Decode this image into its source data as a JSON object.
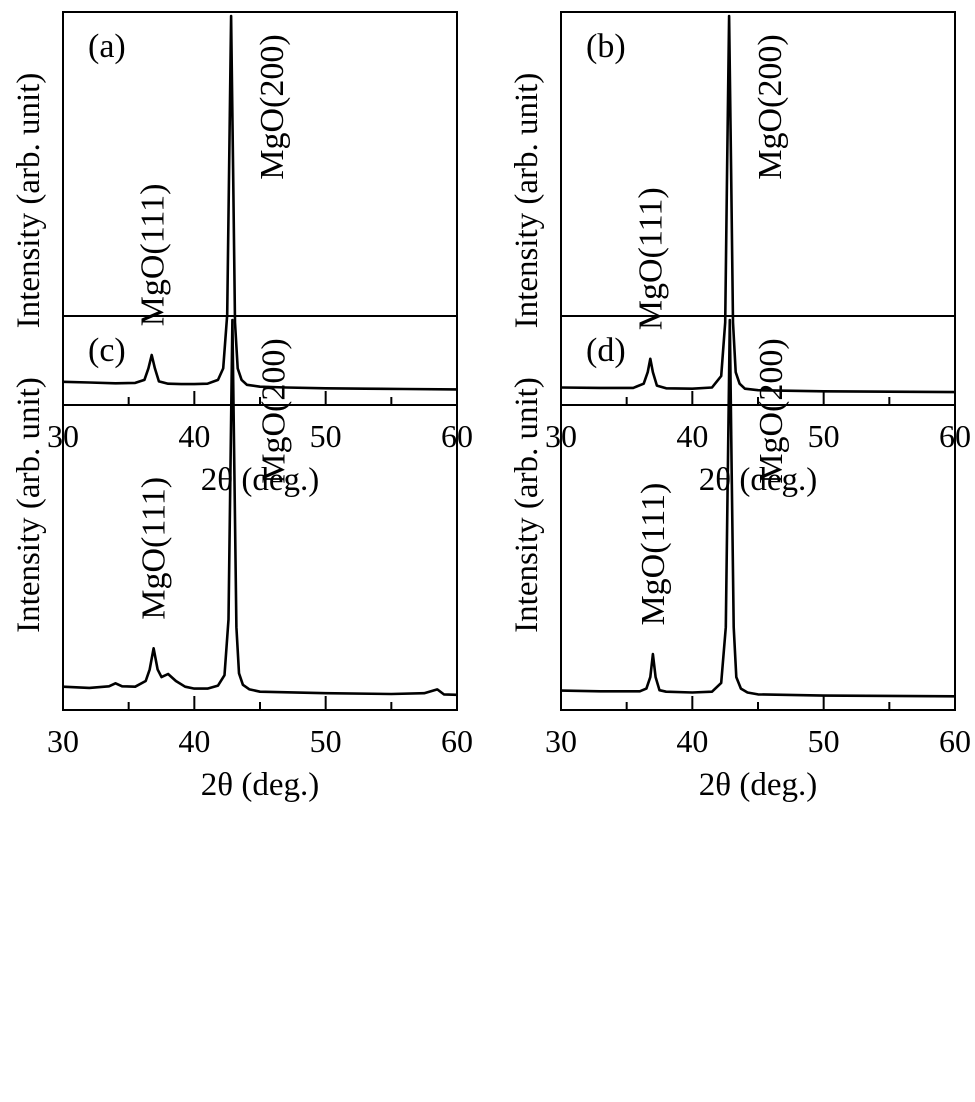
{
  "chart_data": [
    {
      "type": "line",
      "title": "(a)",
      "xlabel": "2θ (deg.)",
      "ylabel": "Intensity (arb. unit)",
      "xlim": [
        30,
        60
      ],
      "ylim": [
        0,
        100
      ],
      "xticks": [
        "30",
        "40",
        "50",
        "60"
      ],
      "minor_x_step": 5,
      "yticks": false,
      "grid": false,
      "baseline": 4.5,
      "x": [
        30,
        32,
        34,
        35.5,
        36.2,
        36.5,
        36.75,
        37.0,
        37.3,
        38,
        39,
        40,
        41,
        41.8,
        42.2,
        42.5,
        42.65,
        42.8,
        42.95,
        43.1,
        43.3,
        43.6,
        44,
        45,
        47,
        50,
        53,
        56,
        60
      ],
      "y": [
        4.5,
        4.3,
        4.1,
        4.2,
        5.0,
        8.0,
        11.5,
        8.0,
        4.6,
        4.0,
        3.9,
        3.9,
        4.0,
        5.0,
        8.0,
        22,
        60,
        100,
        60,
        20,
        8,
        5.0,
        3.7,
        3.2,
        3.0,
        2.8,
        2.7,
        2.6,
        2.5
      ],
      "annotations": [
        {
          "text": "MgO(111)",
          "x": 36.8,
          "y": 11.5
        },
        {
          "text": "MgO(200)",
          "x": 42.8,
          "y": 100
        }
      ]
    },
    {
      "type": "line",
      "title": "(b)",
      "xlabel": "2θ (deg.)",
      "ylabel": "Intensity (arb. unit)",
      "xlim": [
        30,
        60
      ],
      "ylim": [
        0,
        100
      ],
      "xticks": [
        "30",
        "40",
        "50",
        "60"
      ],
      "minor_x_step": 5,
      "yticks": false,
      "grid": false,
      "baseline": 3.0,
      "x": [
        30,
        33,
        35.5,
        36.3,
        36.6,
        36.8,
        37.0,
        37.3,
        38,
        40,
        41.5,
        42.2,
        42.5,
        42.65,
        42.8,
        42.95,
        43.1,
        43.3,
        43.6,
        44,
        45,
        50,
        55,
        60
      ],
      "y": [
        3.0,
        2.9,
        2.9,
        4.0,
        7.0,
        10.5,
        7.0,
        3.5,
        2.8,
        2.7,
        3.0,
        6.0,
        20,
        60,
        100,
        60,
        20,
        7.0,
        4.0,
        2.7,
        2.3,
        2.0,
        1.9,
        1.8
      ],
      "annotations": [
        {
          "text": "MgO(111)",
          "x": 36.8,
          "y": 10.5
        },
        {
          "text": "MgO(200)",
          "x": 42.8,
          "y": 100
        }
      ]
    },
    {
      "type": "line",
      "title": "(c)",
      "xlabel": "2θ (deg.)",
      "ylabel": "Intensity (arb. unit)",
      "xlim": [
        30,
        60
      ],
      "ylim": [
        0,
        100
      ],
      "xticks": [
        "30",
        "40",
        "50",
        "60"
      ],
      "minor_x_step": 5,
      "yticks": false,
      "grid": false,
      "baseline": 4.5,
      "x": [
        30,
        32,
        33.5,
        34,
        34.5,
        35.5,
        36.3,
        36.6,
        36.9,
        37.2,
        37.5,
        38.0,
        38.6,
        39.3,
        40,
        41,
        41.8,
        42.3,
        42.6,
        42.75,
        42.9,
        43.05,
        43.2,
        43.4,
        43.7,
        44.2,
        45,
        50,
        55,
        57.5,
        58.5,
        59,
        60
      ],
      "y": [
        4.5,
        4.2,
        4.6,
        5.4,
        4.6,
        4.5,
        6.0,
        9.0,
        14.5,
        9.0,
        7.0,
        7.8,
        6.0,
        4.5,
        4.0,
        4.0,
        4.8,
        7.5,
        22,
        60,
        100,
        60,
        20,
        8.0,
        5.0,
        3.8,
        3.2,
        2.8,
        2.6,
        2.8,
        3.8,
        2.5,
        2.4
      ],
      "annotations": [
        {
          "text": "MgO(111)",
          "x": 36.9,
          "y": 14.5
        },
        {
          "text": "MgO(200)",
          "x": 42.9,
          "y": 100
        }
      ]
    },
    {
      "type": "line",
      "title": "(d)",
      "xlabel": "2θ (deg.)",
      "ylabel": "Intensity (arb. unit)",
      "xlim": [
        30,
        60
      ],
      "ylim": [
        0,
        100
      ],
      "xticks": [
        "30",
        "40",
        "50",
        "60"
      ],
      "minor_x_step": 5,
      "yticks": false,
      "grid": false,
      "baseline": 3.5,
      "x": [
        30,
        33,
        36,
        36.5,
        36.8,
        37.0,
        37.2,
        37.5,
        38,
        40,
        41.5,
        42.2,
        42.55,
        42.7,
        42.85,
        43.0,
        43.15,
        43.35,
        43.7,
        44.2,
        45,
        50,
        55,
        60
      ],
      "y": [
        3.5,
        3.3,
        3.3,
        4.0,
        7.0,
        13.0,
        7.0,
        3.6,
        3.2,
        3.0,
        3.2,
        5.5,
        20,
        60,
        100,
        60,
        20,
        7.0,
        4.0,
        3.0,
        2.5,
        2.2,
        2.1,
        2.0
      ],
      "annotations": [
        {
          "text": "MgO(111)",
          "x": 37.0,
          "y": 13.0
        },
        {
          "text": "MgO(200)",
          "x": 42.85,
          "y": 100
        }
      ]
    }
  ]
}
